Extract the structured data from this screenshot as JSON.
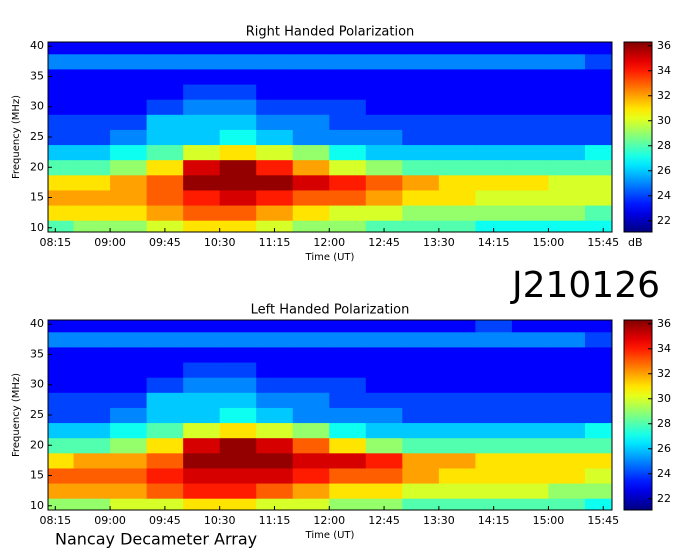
{
  "annotations": [
    "J210126",
    "Nancay Decameter Array"
  ],
  "chart_data": [
    {
      "type": "heatmap",
      "title": "Right Handed Polarization",
      "xlabel": "Time (UT)",
      "ylabel": "Frequency (MHz)",
      "colormap": "jet",
      "colorbar_label": "dB",
      "x": [
        8.25,
        8.75,
        9.25,
        9.75,
        10.25,
        10.75,
        11.25,
        11.75,
        12.25,
        12.75,
        13.25,
        13.75,
        14.25,
        14.75,
        15.25,
        15.75
      ],
      "y": [
        10,
        12.5,
        15,
        17.5,
        20,
        22.5,
        25,
        27.5,
        30,
        32.5,
        35,
        37.5,
        40
      ],
      "z": [
        [
          28,
          29,
          29,
          30,
          31,
          31,
          30,
          29,
          29,
          28,
          28,
          28,
          27,
          27,
          27,
          27
        ],
        [
          31,
          31,
          31,
          32,
          33,
          33,
          32,
          31,
          30,
          30,
          29,
          29,
          29,
          29,
          29,
          28
        ],
        [
          32,
          32,
          32,
          33,
          34,
          35,
          34,
          33,
          33,
          32,
          31,
          31,
          30,
          30,
          30,
          30
        ],
        [
          31,
          31,
          32,
          33,
          36,
          36,
          36,
          35,
          34,
          33,
          32,
          31,
          31,
          31,
          30,
          30
        ],
        [
          28,
          28,
          29,
          31,
          35,
          36,
          34,
          32,
          30,
          29,
          28,
          28,
          28,
          28,
          28,
          28
        ],
        [
          26,
          26,
          27,
          28,
          30,
          31,
          30,
          29,
          27,
          26,
          26,
          26,
          26,
          26,
          26,
          27
        ],
        [
          24,
          24,
          25,
          26,
          26,
          27,
          26,
          25,
          25,
          25,
          24,
          24,
          24,
          24,
          24,
          24
        ],
        [
          24,
          24,
          24,
          26,
          26,
          26,
          25,
          25,
          24,
          24,
          24,
          24,
          24,
          24,
          24,
          24
        ],
        [
          23,
          23,
          23,
          24,
          25,
          25,
          24,
          24,
          24,
          23,
          23,
          23,
          23,
          23,
          23,
          23
        ],
        [
          23,
          23,
          23,
          23,
          24,
          24,
          23,
          23,
          23,
          23,
          23,
          23,
          23,
          23,
          23,
          23
        ],
        [
          23,
          23,
          23,
          23,
          23,
          23,
          23,
          23,
          23,
          23,
          23,
          23,
          23,
          23,
          23,
          23
        ],
        [
          25,
          25,
          25,
          25,
          25,
          25,
          25,
          25,
          25,
          25,
          25,
          25,
          25,
          25,
          25,
          24
        ],
        [
          23,
          23,
          23,
          23,
          23,
          23,
          23,
          23,
          23,
          23,
          23,
          23,
          23,
          23,
          23,
          23
        ]
      ],
      "xlim": [
        8.15,
        15.87
      ],
      "ylim": [
        9.3,
        40.7
      ],
      "zlim": [
        21.1,
        36.3
      ],
      "xticks": [
        {
          "value": 8.25,
          "label": "08:15"
        },
        {
          "value": 9,
          "label": "09:00"
        },
        {
          "value": 9.75,
          "label": "09:45"
        },
        {
          "value": 10.5,
          "label": "10:30"
        },
        {
          "value": 11.25,
          "label": "11:15"
        },
        {
          "value": 12,
          "label": "12:00"
        },
        {
          "value": 12.75,
          "label": "12:45"
        },
        {
          "value": 13.5,
          "label": "13:30"
        },
        {
          "value": 14.25,
          "label": "14:15"
        },
        {
          "value": 15,
          "label": "15:00"
        },
        {
          "value": 15.75,
          "label": "15:45"
        }
      ],
      "yticks": [
        10,
        15,
        20,
        25,
        30,
        35,
        40
      ],
      "zticks": [
        22,
        24,
        26,
        28,
        30,
        32,
        34,
        36
      ]
    },
    {
      "type": "heatmap",
      "title": "Left Handed Polarization",
      "xlabel": "Time (UT)",
      "ylabel": "Frequency (MHz)",
      "colormap": "jet",
      "x": [
        8.25,
        8.75,
        9.25,
        9.75,
        10.25,
        10.75,
        11.25,
        11.75,
        12.25,
        12.75,
        13.25,
        13.75,
        14.25,
        14.75,
        15.25,
        15.75
      ],
      "y": [
        10,
        12.5,
        15,
        17.5,
        20,
        22.5,
        25,
        27.5,
        30,
        32.5,
        35,
        37.5,
        40
      ],
      "z": [
        [
          29,
          29,
          30,
          30,
          31,
          31,
          30,
          30,
          29,
          29,
          28,
          28,
          28,
          28,
          28,
          27
        ],
        [
          32,
          32,
          32,
          33,
          34,
          34,
          33,
          32,
          31,
          31,
          30,
          30,
          30,
          30,
          29,
          29
        ],
        [
          33,
          33,
          33,
          34,
          35,
          35,
          35,
          34,
          33,
          33,
          32,
          31,
          31,
          31,
          31,
          30
        ],
        [
          31,
          32,
          32,
          33,
          36,
          36,
          36,
          35,
          35,
          34,
          32,
          32,
          31,
          31,
          31,
          31
        ],
        [
          28,
          28,
          29,
          31,
          35,
          36,
          35,
          33,
          31,
          29,
          28,
          28,
          28,
          28,
          28,
          28
        ],
        [
          26,
          26,
          27,
          28,
          30,
          31,
          30,
          29,
          27,
          26,
          26,
          26,
          26,
          26,
          26,
          27
        ],
        [
          24,
          24,
          25,
          26,
          26,
          27,
          26,
          25,
          25,
          25,
          24,
          24,
          24,
          24,
          24,
          24
        ],
        [
          24,
          24,
          24,
          26,
          26,
          26,
          25,
          25,
          24,
          24,
          24,
          24,
          24,
          24,
          24,
          24
        ],
        [
          23,
          23,
          23,
          24,
          25,
          25,
          24,
          24,
          24,
          23,
          23,
          23,
          23,
          23,
          23,
          23
        ],
        [
          23,
          23,
          23,
          23,
          24,
          24,
          23,
          23,
          23,
          23,
          23,
          23,
          23,
          23,
          23,
          23
        ],
        [
          23,
          23,
          23,
          23,
          23,
          23,
          23,
          23,
          23,
          23,
          23,
          23,
          23,
          23,
          23,
          23
        ],
        [
          25,
          25,
          25,
          25,
          25,
          25,
          25,
          25,
          25,
          25,
          25,
          25,
          25,
          25,
          25,
          24
        ],
        [
          23,
          23,
          23,
          23,
          23,
          23,
          23,
          23,
          23,
          23,
          23,
          23,
          24,
          23,
          23,
          23
        ]
      ],
      "xlim": [
        8.15,
        15.87
      ],
      "ylim": [
        9.3,
        40.7
      ],
      "zlim": [
        21.1,
        36.3
      ],
      "xticks": [
        {
          "value": 8.25,
          "label": "08:15"
        },
        {
          "value": 9,
          "label": "09:00"
        },
        {
          "value": 9.75,
          "label": "09:45"
        },
        {
          "value": 10.5,
          "label": "10:30"
        },
        {
          "value": 11.25,
          "label": "11:15"
        },
        {
          "value": 12,
          "label": "12:00"
        },
        {
          "value": 12.75,
          "label": "12:45"
        },
        {
          "value": 13.5,
          "label": "13:30"
        },
        {
          "value": 14.25,
          "label": "14:15"
        },
        {
          "value": 15,
          "label": "15:00"
        },
        {
          "value": 15.75,
          "label": "15:45"
        }
      ],
      "yticks": [
        10,
        15,
        20,
        25,
        30,
        35,
        40
      ],
      "zticks": [
        22,
        24,
        26,
        28,
        30,
        32,
        34,
        36
      ]
    }
  ]
}
